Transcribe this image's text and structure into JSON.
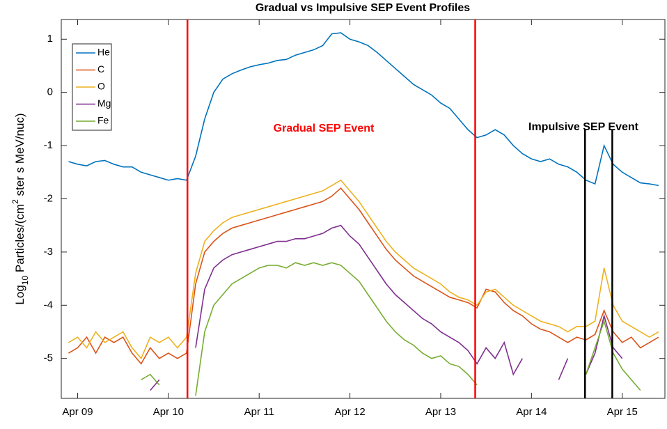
{
  "chart_data": {
    "type": "line",
    "title": "Gradual vs Impulsive SEP Event Profiles",
    "y_label_parts": [
      "Log",
      "10",
      " Particles/(cm",
      "2",
      " ster s MeV/nuc)"
    ],
    "x": [
      8.9,
      9.0,
      9.1,
      9.2,
      9.3,
      9.4,
      9.5,
      9.6,
      9.7,
      9.8,
      9.9,
      10.0,
      10.1,
      10.2,
      10.3,
      10.4,
      10.5,
      10.6,
      10.7,
      10.8,
      10.9,
      11.0,
      11.1,
      11.2,
      11.3,
      11.4,
      11.5,
      11.6,
      11.7,
      11.8,
      11.9,
      12.0,
      12.1,
      12.2,
      12.3,
      12.4,
      12.5,
      12.6,
      12.7,
      12.8,
      12.9,
      13.0,
      13.1,
      13.2,
      13.3,
      13.4,
      13.5,
      13.6,
      13.7,
      13.8,
      13.9,
      14.0,
      14.1,
      14.2,
      14.3,
      14.4,
      14.5,
      14.6,
      14.7,
      14.8,
      14.9,
      15.0,
      15.1,
      15.2,
      15.3,
      15.4
    ],
    "series": [
      {
        "name": "He",
        "color": "#0072BD",
        "values": [
          -1.3,
          -1.35,
          -1.38,
          -1.3,
          -1.28,
          -1.35,
          -1.4,
          -1.4,
          -1.5,
          -1.55,
          -1.6,
          -1.65,
          -1.62,
          -1.65,
          -1.2,
          -0.5,
          0.0,
          0.25,
          0.35,
          0.42,
          0.48,
          0.52,
          0.55,
          0.6,
          0.62,
          0.7,
          0.75,
          0.8,
          0.88,
          1.1,
          1.12,
          1.0,
          0.95,
          0.88,
          0.75,
          0.6,
          0.45,
          0.3,
          0.15,
          0.05,
          -0.05,
          -0.2,
          -0.3,
          -0.5,
          -0.7,
          -0.85,
          -0.8,
          -0.7,
          -0.8,
          -1.0,
          -1.15,
          -1.25,
          -1.3,
          -1.25,
          -1.35,
          -1.4,
          -1.5,
          -1.65,
          -1.72,
          -1.0,
          -1.35,
          -1.5,
          -1.6,
          -1.7,
          -1.72,
          -1.75
        ]
      },
      {
        "name": "C",
        "color": "#D95319",
        "values": [
          -4.9,
          -4.8,
          -4.6,
          -4.9,
          -4.6,
          -4.7,
          -4.6,
          -4.9,
          -5.1,
          -4.8,
          -5.0,
          -4.9,
          -5.0,
          -4.9,
          -3.6,
          -3.0,
          -2.8,
          -2.65,
          -2.55,
          -2.5,
          -2.45,
          -2.4,
          -2.35,
          -2.3,
          -2.25,
          -2.2,
          -2.15,
          -2.1,
          -2.05,
          -1.95,
          -1.8,
          -2.0,
          -2.2,
          -2.45,
          -2.7,
          -2.95,
          -3.15,
          -3.3,
          -3.45,
          -3.55,
          -3.65,
          -3.75,
          -3.85,
          -3.9,
          -3.95,
          -4.05,
          -3.7,
          -3.75,
          -3.95,
          -4.1,
          -4.2,
          -4.35,
          -4.45,
          -4.5,
          -4.6,
          -4.7,
          -4.6,
          -4.65,
          -4.55,
          -4.1,
          -4.5,
          -4.7,
          -4.6,
          -4.8,
          -4.7,
          -4.6
        ]
      },
      {
        "name": "O",
        "color": "#EDB120",
        "values": [
          -4.7,
          -4.6,
          -4.8,
          -4.5,
          -4.7,
          -4.6,
          -4.5,
          -4.8,
          -5.0,
          -4.6,
          -4.7,
          -4.6,
          -4.8,
          -4.6,
          -3.4,
          -2.8,
          -2.6,
          -2.45,
          -2.35,
          -2.3,
          -2.25,
          -2.2,
          -2.15,
          -2.1,
          -2.05,
          -2.0,
          -1.95,
          -1.9,
          -1.85,
          -1.75,
          -1.65,
          -1.85,
          -2.05,
          -2.3,
          -2.55,
          -2.8,
          -3.0,
          -3.15,
          -3.3,
          -3.4,
          -3.5,
          -3.6,
          -3.75,
          -3.85,
          -3.9,
          -4.0,
          -3.75,
          -3.7,
          -3.85,
          -4.0,
          -4.1,
          -4.2,
          -4.3,
          -4.35,
          -4.4,
          -4.5,
          -4.4,
          -4.4,
          -4.3,
          -3.3,
          -4.0,
          -4.3,
          -4.4,
          -4.5,
          -4.6,
          -4.5
        ]
      },
      {
        "name": "Mg",
        "color": "#7E2F8E",
        "values": [
          null,
          -5.6,
          null,
          -5.4,
          null,
          -5.5,
          null,
          -5.3,
          null,
          -5.6,
          -5.4,
          null,
          -5.5,
          null,
          -4.8,
          -3.7,
          -3.3,
          -3.15,
          -3.05,
          -3.0,
          -2.95,
          -2.9,
          -2.85,
          -2.8,
          -2.8,
          -2.75,
          -2.75,
          -2.7,
          -2.65,
          -2.55,
          -2.5,
          -2.7,
          -2.85,
          -3.1,
          -3.35,
          -3.6,
          -3.8,
          -3.95,
          -4.1,
          -4.25,
          -4.35,
          -4.5,
          -4.6,
          -4.7,
          -4.85,
          -5.1,
          -4.8,
          -5.0,
          -4.7,
          -5.3,
          -5.0,
          null,
          -5.2,
          null,
          -5.4,
          -5.0,
          null,
          -5.3,
          -4.9,
          -4.2,
          -4.8,
          -5.0,
          null,
          -5.4,
          null,
          -5.3
        ]
      },
      {
        "name": "Fe",
        "color": "#77AC30",
        "values": [
          null,
          -5.65,
          null,
          null,
          -5.6,
          null,
          -5.5,
          null,
          -5.4,
          -5.3,
          -5.5,
          null,
          -5.6,
          null,
          -5.7,
          -4.5,
          -4.0,
          -3.8,
          -3.6,
          -3.5,
          -3.4,
          -3.3,
          -3.25,
          -3.25,
          -3.3,
          -3.2,
          -3.25,
          -3.2,
          -3.25,
          -3.2,
          -3.25,
          -3.4,
          -3.55,
          -3.8,
          -4.05,
          -4.3,
          -4.5,
          -4.65,
          -4.75,
          -4.9,
          -5.0,
          -4.95,
          -5.1,
          -5.15,
          -5.3,
          -5.5,
          null,
          -5.6,
          null,
          -5.5,
          null,
          -5.6,
          null,
          -5.5,
          null,
          -5.4,
          null,
          -5.3,
          -4.8,
          -4.3,
          -4.9,
          -5.2,
          -5.4,
          -5.6,
          null,
          null
        ]
      }
    ],
    "xlim": [
      8.82,
      15.47
    ],
    "xticks": [
      {
        "value": 9,
        "label": "Apr 09"
      },
      {
        "value": 10,
        "label": "Apr 10"
      },
      {
        "value": 11,
        "label": "Apr 11"
      },
      {
        "value": 12,
        "label": "Apr 12"
      },
      {
        "value": 13,
        "label": "Apr 13"
      },
      {
        "value": 14,
        "label": "Apr 14"
      },
      {
        "value": 15,
        "label": "Apr 15"
      }
    ],
    "ylim": [
      -5.75,
      1.37
    ],
    "yticks": [
      1,
      0,
      -1,
      -2,
      -3,
      -4,
      -5
    ],
    "legend": "upper left",
    "event_lines": [
      {
        "x": 10.21,
        "color": "#ff0000"
      },
      {
        "x": 13.38,
        "color": "#ff0000"
      },
      {
        "x": 14.59,
        "color": "#000000"
      },
      {
        "x": 14.89,
        "color": "#000000"
      }
    ],
    "annotations": [
      {
        "text": "Gradual SEP Event",
        "color": "#ff0000"
      },
      {
        "text": "Impulsive SEP Event",
        "color": "#000000"
      }
    ]
  }
}
